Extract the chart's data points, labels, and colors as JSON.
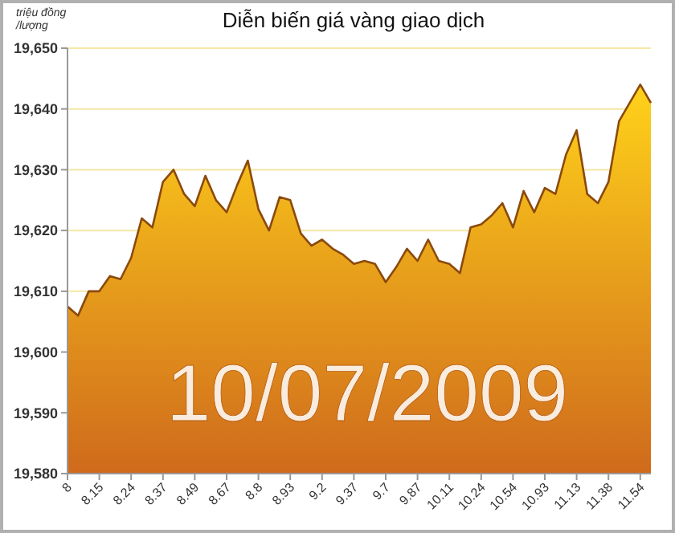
{
  "chart_data": {
    "type": "area",
    "title": "Diễn biến giá vàng giao dịch",
    "ylabel": "triệu đồng /lượng",
    "categories": [
      "8",
      null,
      null,
      "8.15",
      null,
      null,
      "8.24",
      null,
      null,
      "8.37",
      null,
      null,
      "8.49",
      null,
      null,
      "8.67",
      null,
      null,
      "8.8",
      null,
      null,
      "8.93",
      null,
      null,
      "9.2",
      null,
      null,
      "9.37",
      null,
      null,
      "9.7",
      null,
      null,
      "9.87",
      null,
      null,
      "10.11",
      null,
      null,
      "10.24",
      null,
      null,
      "10.54",
      null,
      null,
      "10.93",
      null,
      null,
      "11.13",
      null,
      null,
      "11.38",
      null,
      null,
      "11.54",
      null
    ],
    "series": [
      {
        "color": "#8b4a0c",
        "values": [
          19607.5,
          19606,
          19610,
          19610,
          19612.5,
          19612,
          19615.5,
          19622,
          19620.5,
          19628,
          19630,
          19626,
          19624,
          19629,
          19625,
          19623,
          19627.5,
          19631.5,
          19623.5,
          19620,
          19625.5,
          19625,
          19619.5,
          19617.5,
          19618.5,
          19617,
          19616,
          19614.5,
          19615,
          19614.5,
          19611.5,
          19614,
          19617,
          19615,
          19618.5,
          19615,
          19614.5,
          19613,
          19620.5,
          19621,
          19622.5,
          19624.5,
          19620.5,
          19626.5,
          19623,
          19627,
          19626,
          19632.5,
          19636.5,
          19626,
          19624.5,
          19628,
          19638,
          19641,
          19644,
          19641
        ]
      }
    ],
    "ylim": [
      19580,
      19650
    ],
    "yticks": [
      {
        "value": 19580,
        "label": "19,580"
      },
      {
        "value": 19590,
        "label": "19,590"
      },
      {
        "value": 19600,
        "label": "19,600"
      },
      {
        "value": 19610,
        "label": "19,610"
      },
      {
        "value": 19620,
        "label": "19,620"
      },
      {
        "value": 19630,
        "label": "19,630"
      },
      {
        "value": 19640,
        "label": "19,640"
      },
      {
        "value": 19650,
        "label": "19,650"
      }
    ],
    "grid": "y",
    "annotations": [
      "10/07/2009"
    ]
  }
}
